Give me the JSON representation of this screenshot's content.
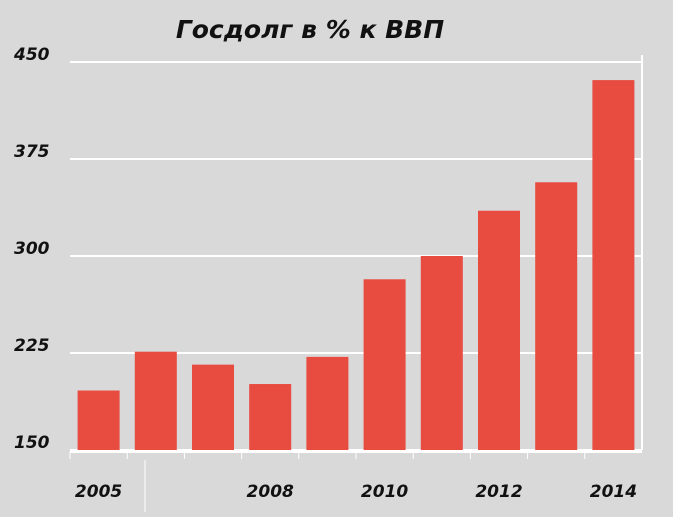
{
  "chart_data": {
    "type": "bar",
    "title": "Госдолг в % к ВВП",
    "categories": [
      "2005",
      null,
      null,
      "2008",
      null,
      "2010",
      null,
      "2012",
      null,
      "2014"
    ],
    "values": [
      196,
      226,
      216,
      201,
      222,
      282,
      300,
      335,
      357,
      436
    ],
    "color": "#e84b3f",
    "ylim": [
      150,
      450
    ],
    "yticks": [
      150,
      225,
      300,
      375,
      450
    ],
    "grid": true
  }
}
